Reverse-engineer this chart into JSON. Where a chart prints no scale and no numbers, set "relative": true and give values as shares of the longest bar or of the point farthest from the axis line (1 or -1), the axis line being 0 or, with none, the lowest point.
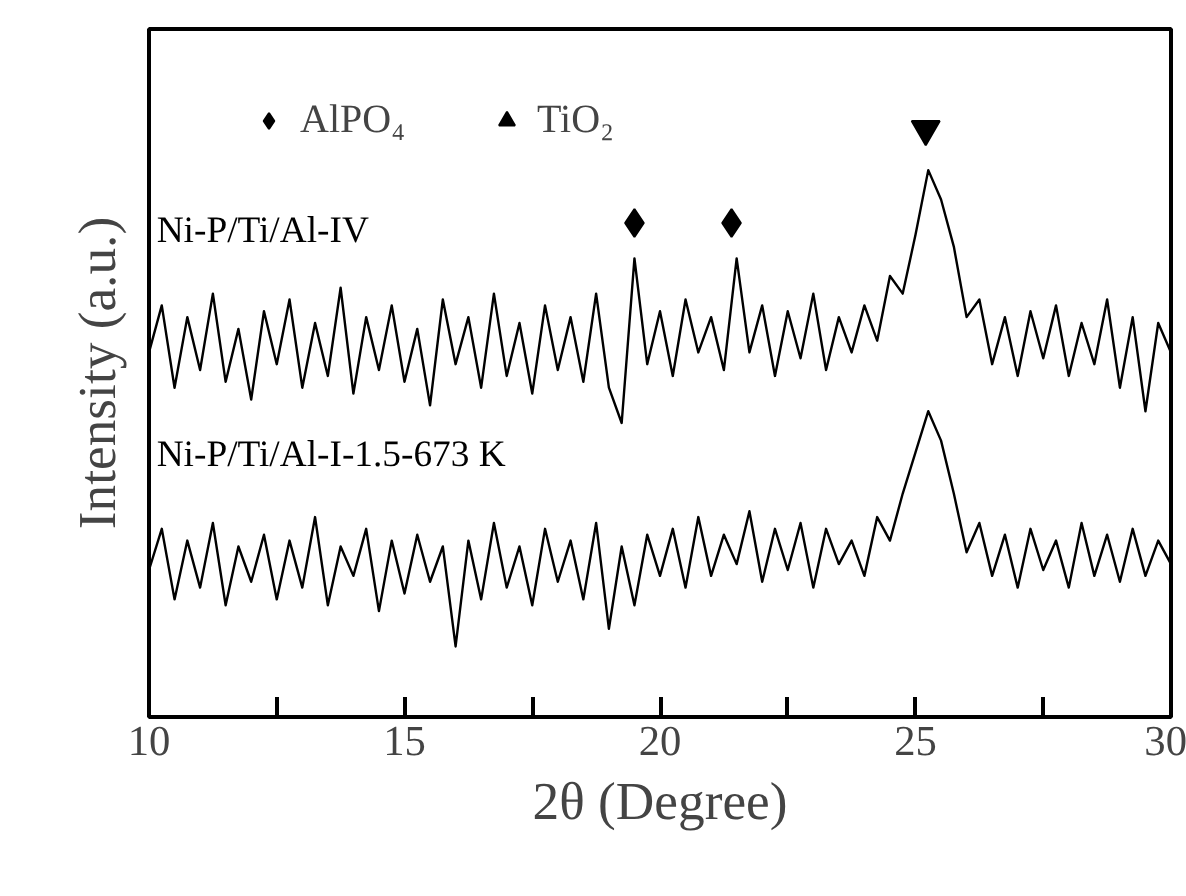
{
  "chart_data": {
    "type": "line",
    "relative": true,
    "xlabel": "2θ (Degree)",
    "ylabel": "Intensity (a.u.)",
    "xlim": [
      10,
      30
    ],
    "xticks": [
      10,
      {
        "value": 12.5,
        "label": null
      },
      15,
      {
        "value": 17.5,
        "label": null
      },
      20,
      {
        "value": 22.5,
        "label": null
      },
      25,
      {
        "value": 27.5,
        "label": null
      },
      30
    ],
    "tick_labels": "x",
    "legend": "top left",
    "grid": false,
    "x": [
      10,
      10.25,
      10.5,
      10.75,
      11,
      11.25,
      11.5,
      11.75,
      12,
      12.25,
      12.5,
      12.75,
      13,
      13.25,
      13.5,
      13.75,
      14,
      14.25,
      14.5,
      14.75,
      15,
      15.25,
      15.5,
      15.75,
      16,
      16.25,
      16.5,
      16.75,
      17,
      17.25,
      17.5,
      17.75,
      18,
      18.25,
      18.5,
      18.75,
      19,
      19.25,
      19.5,
      19.75,
      20,
      20.25,
      20.5,
      20.75,
      21,
      21.25,
      21.5,
      21.75,
      22,
      22.25,
      22.5,
      22.75,
      23,
      23.25,
      23.5,
      23.75,
      24,
      24.25,
      24.5,
      24.75,
      25,
      25.25,
      25.5,
      25.75,
      26,
      26.25,
      26.5,
      26.75,
      27,
      27.25,
      27.5,
      27.75,
      28,
      28.25,
      28.5,
      28.75,
      29,
      29.25,
      29.5,
      29.75,
      30
    ],
    "series": [
      {
        "name": "Ni-P/Ti/Al-IV",
        "color": "#000000",
        "values": [
          0.62,
          0.7,
          0.56,
          0.68,
          0.59,
          0.72,
          0.57,
          0.66,
          0.54,
          0.69,
          0.6,
          0.71,
          0.56,
          0.67,
          0.58,
          0.73,
          0.55,
          0.68,
          0.59,
          0.7,
          0.57,
          0.66,
          0.53,
          0.71,
          0.6,
          0.68,
          0.56,
          0.72,
          0.58,
          0.67,
          0.55,
          0.7,
          0.59,
          0.68,
          0.57,
          0.72,
          0.56,
          0.5,
          0.78,
          0.6,
          0.69,
          0.58,
          0.71,
          0.62,
          0.68,
          0.59,
          0.78,
          0.62,
          0.7,
          0.58,
          0.69,
          0.61,
          0.72,
          0.59,
          0.68,
          0.62,
          0.7,
          0.64,
          0.75,
          0.72,
          0.82,
          0.93,
          0.88,
          0.8,
          0.68,
          0.71,
          0.6,
          0.68,
          0.58,
          0.69,
          0.61,
          0.7,
          0.58,
          0.67,
          0.6,
          0.71,
          0.56,
          0.68,
          0.52,
          0.67,
          0.62
        ]
      },
      {
        "name": "Ni-P/Ti/Al-I-1.5-673 K",
        "color": "#000000",
        "values": [
          0.25,
          0.32,
          0.2,
          0.3,
          0.22,
          0.33,
          0.19,
          0.29,
          0.23,
          0.31,
          0.2,
          0.3,
          0.22,
          0.34,
          0.19,
          0.29,
          0.24,
          0.32,
          0.18,
          0.3,
          0.21,
          0.31,
          0.23,
          0.29,
          0.12,
          0.3,
          0.2,
          0.33,
          0.22,
          0.29,
          0.19,
          0.32,
          0.23,
          0.3,
          0.2,
          0.33,
          0.15,
          0.29,
          0.19,
          0.31,
          0.24,
          0.32,
          0.22,
          0.34,
          0.24,
          0.31,
          0.26,
          0.35,
          0.23,
          0.32,
          0.25,
          0.33,
          0.22,
          0.32,
          0.26,
          0.3,
          0.24,
          0.34,
          0.3,
          0.38,
          0.45,
          0.52,
          0.47,
          0.38,
          0.28,
          0.33,
          0.24,
          0.31,
          0.22,
          0.32,
          0.25,
          0.3,
          0.22,
          0.33,
          0.24,
          0.31,
          0.23,
          0.32,
          0.24,
          0.3,
          0.26
        ]
      },
      {
        "name": "AlPO₄",
        "type": "scatter",
        "marker": "diamond",
        "color": "#000000",
        "x": [
          19.5,
          21.4
        ],
        "values": [
          0.84,
          0.84
        ]
      },
      {
        "name": "TiO₂",
        "type": "scatter",
        "marker": "triangle",
        "color": "#000000",
        "x": [
          25.2
        ],
        "values": [
          1.0
        ]
      }
    ]
  }
}
